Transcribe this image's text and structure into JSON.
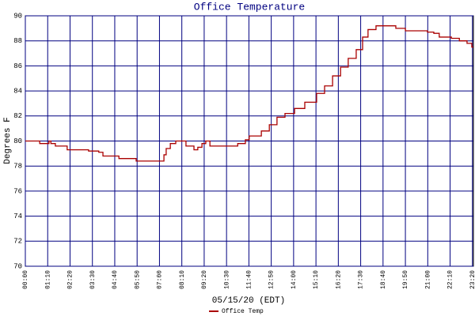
{
  "chart_data": {
    "type": "line",
    "title": "Office Temperature",
    "ylabel": "Degrees F",
    "xlabel": "05/15/20 (EDT)",
    "x": [
      0,
      45,
      74,
      80,
      94,
      131,
      198,
      230,
      243,
      293,
      347,
      416,
      434,
      441,
      454,
      471,
      503,
      528,
      540,
      553,
      565,
      578,
      665,
      689,
      701,
      739,
      764,
      788,
      813,
      843,
      875,
      912,
      937,
      962,
      987,
      1011,
      1036,
      1056,
      1073,
      1098,
      1135,
      1160,
      1190,
      1235,
      1259,
      1279,
      1296,
      1334,
      1359,
      1383,
      1398
    ],
    "series": [
      {
        "name": "Office Temp",
        "color": "#aa0000",
        "values": [
          80.0,
          79.8,
          80.0,
          79.8,
          79.6,
          79.3,
          79.2,
          79.1,
          78.8,
          78.6,
          78.4,
          78.4,
          78.9,
          79.4,
          79.8,
          80.0,
          79.6,
          79.3,
          79.5,
          79.8,
          80.0,
          79.6,
          79.8,
          80.1,
          80.4,
          80.8,
          81.3,
          81.9,
          82.2,
          82.6,
          83.1,
          83.8,
          84.4,
          85.2,
          85.9,
          86.6,
          87.3,
          88.3,
          88.9,
          89.2,
          89.2,
          89.0,
          88.8,
          88.8,
          88.7,
          88.6,
          88.3,
          88.2,
          88.0,
          87.8,
          87.5
        ]
      }
    ],
    "xlim": [
      0,
      1403
    ],
    "xticks": [
      {
        "value": 0,
        "label": "00:00"
      },
      {
        "value": 70,
        "label": "01:10"
      },
      {
        "value": 140,
        "label": "02:20"
      },
      {
        "value": 210,
        "label": "03:30"
      },
      {
        "value": 280,
        "label": "04:40"
      },
      {
        "value": 350,
        "label": "05:50"
      },
      {
        "value": 420,
        "label": "07:00"
      },
      {
        "value": 490,
        "label": "08:10"
      },
      {
        "value": 560,
        "label": "09:20"
      },
      {
        "value": 630,
        "label": "10:30"
      },
      {
        "value": 700,
        "label": "11:40"
      },
      {
        "value": 770,
        "label": "12:50"
      },
      {
        "value": 840,
        "label": "14:00"
      },
      {
        "value": 910,
        "label": "15:10"
      },
      {
        "value": 980,
        "label": "16:20"
      },
      {
        "value": 1050,
        "label": "17:30"
      },
      {
        "value": 1120,
        "label": "18:40"
      },
      {
        "value": 1190,
        "label": "19:50"
      },
      {
        "value": 1260,
        "label": "21:00"
      },
      {
        "value": 1330,
        "label": "22:10"
      },
      {
        "value": 1400,
        "label": "23:20"
      }
    ],
    "ylim": [
      70,
      90
    ],
    "yticks": [
      70,
      72,
      74,
      76,
      78,
      80,
      82,
      84,
      86,
      88,
      90
    ],
    "grid": true,
    "grid_color": "#000080"
  }
}
